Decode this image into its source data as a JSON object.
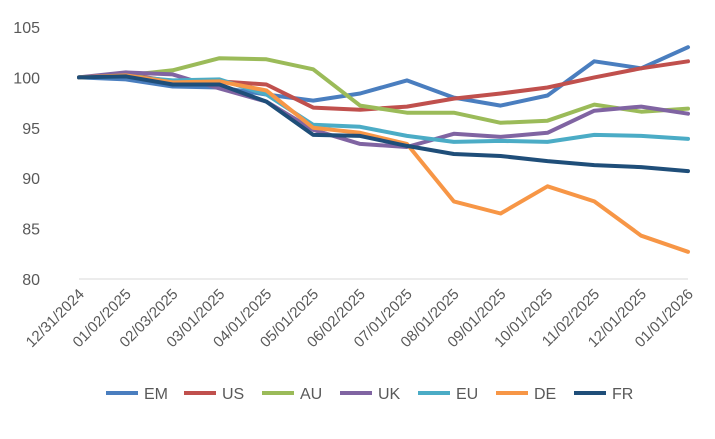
{
  "chart_data": {
    "type": "line",
    "title": "",
    "xlabel": "",
    "ylabel": "",
    "ylim": [
      80,
      105
    ],
    "yticks": [
      "80",
      "85",
      "90",
      "95",
      "100",
      "105"
    ],
    "grid": false,
    "legend_position": "bottom",
    "categories": [
      "12/31/2024",
      "01/02/2025",
      "02/03/2025",
      "03/01/2025",
      "04/01/2025",
      "05/01/2025",
      "06/02/2025",
      "07/01/2025",
      "08/01/2025",
      "09/01/2025",
      "10/01/2025",
      "11/02/2025",
      "12/01/2025",
      "01/01/2026"
    ],
    "series": [
      {
        "name": "EM",
        "color": "#4a7ebf",
        "values": [
          100,
          99.8,
          99.1,
          99.0,
          98.3,
          97.7,
          98.4,
          99.7,
          98.0,
          97.2,
          98.2,
          101.6,
          100.9,
          103.0
        ]
      },
      {
        "name": "US",
        "color": "#c0504d",
        "values": [
          100,
          100.3,
          99.6,
          99.6,
          99.3,
          97.0,
          96.8,
          97.1,
          97.9,
          98.4,
          99.0,
          100.0,
          100.9,
          101.6
        ]
      },
      {
        "name": "AU",
        "color": "#9bbb59",
        "values": [
          100,
          100.2,
          100.7,
          101.9,
          101.8,
          100.8,
          97.2,
          96.5,
          96.5,
          95.5,
          95.7,
          97.3,
          96.6,
          96.9
        ]
      },
      {
        "name": "UK",
        "color": "#8064a2",
        "values": [
          100,
          100.5,
          100.3,
          98.9,
          97.6,
          94.8,
          93.4,
          93.1,
          94.4,
          94.1,
          94.5,
          96.7,
          97.1,
          96.4
        ]
      },
      {
        "name": "EU",
        "color": "#4bacc6",
        "values": [
          100,
          100.1,
          99.7,
          99.8,
          98.3,
          95.3,
          95.1,
          94.2,
          93.6,
          93.7,
          93.6,
          94.3,
          94.2,
          93.9
        ]
      },
      {
        "name": "DE",
        "color": "#f79646",
        "values": [
          100,
          100.2,
          99.5,
          99.6,
          98.7,
          95.0,
          94.5,
          93.4,
          87.7,
          86.5,
          89.2,
          87.7,
          84.3,
          82.7
        ]
      },
      {
        "name": "FR",
        "color": "#1f4e79",
        "values": [
          100,
          100.1,
          99.3,
          99.3,
          97.6,
          94.3,
          94.2,
          93.2,
          92.4,
          92.2,
          91.7,
          91.3,
          91.1,
          90.7
        ]
      }
    ]
  }
}
